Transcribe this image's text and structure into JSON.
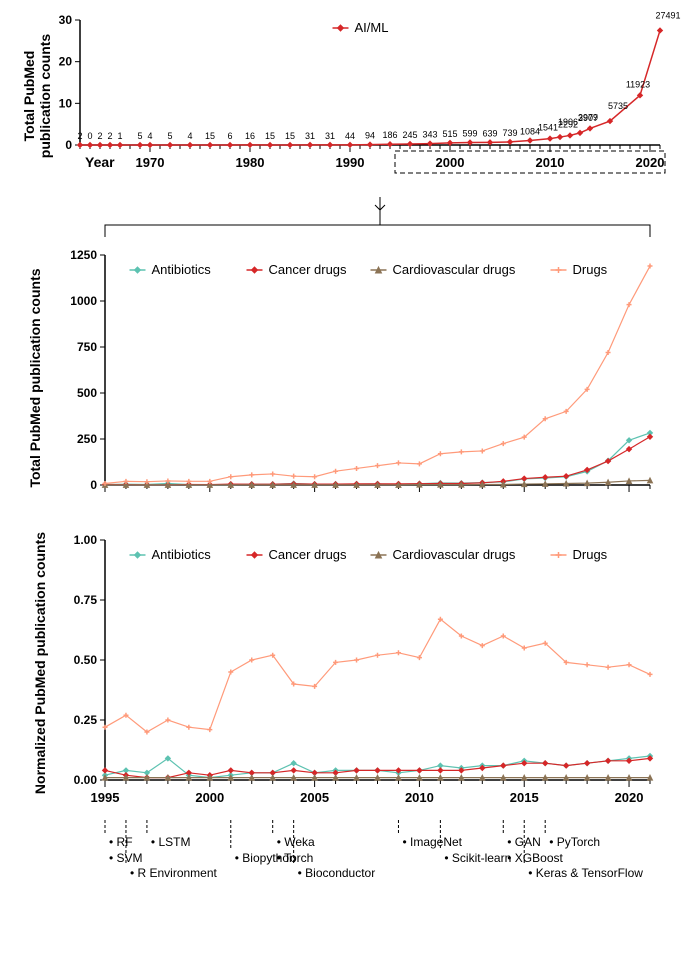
{
  "chart1": {
    "type": "line",
    "title": "",
    "ylabel": "Total PubMed\npublication counts",
    "xlabel": "Year",
    "series_label": "AI/ML",
    "series_color": "#d62728",
    "marker": "diamond",
    "marker_size": 4,
    "line_width": 1.5,
    "background_color": "#ffffff",
    "ylim": [
      0,
      30
    ],
    "yticks": [
      0,
      10,
      20,
      30
    ],
    "year_start": 1963,
    "year_end": 2021,
    "year_ticks": [
      1970,
      1980,
      1990,
      2000,
      2010,
      2020
    ],
    "data_labels": [
      2,
      0,
      2,
      2,
      1,
      5,
      4,
      5,
      4,
      15,
      6,
      16,
      15,
      15,
      31,
      31,
      44,
      94,
      186,
      245,
      343,
      515,
      599,
      639,
      739,
      1084,
      1541,
      1906,
      2292,
      2907,
      3979,
      5735,
      11923,
      27491
    ],
    "values_thousands": [
      0.002,
      0,
      0.002,
      0.002,
      0.001,
      0.005,
      0.004,
      0.005,
      0.004,
      0.015,
      0.006,
      0.016,
      0.015,
      0.015,
      0.031,
      0.031,
      0.044,
      0.094,
      0.186,
      0.245,
      0.343,
      0.515,
      0.599,
      0.639,
      0.739,
      1.084,
      1.541,
      1.906,
      2.292,
      2.907,
      3.979,
      5.735,
      11.923,
      27.491
    ],
    "label_years": [
      1963,
      1964,
      1965,
      1966,
      1967,
      1969,
      1970,
      1972,
      1974,
      1976,
      1978,
      1980,
      1982,
      1984,
      1986,
      1988,
      1990,
      1992,
      1994,
      1996,
      1998,
      2000,
      2002,
      2004,
      2006,
      2008,
      2010,
      2011,
      2012,
      2013,
      2014,
      2016,
      2019,
      2021
    ],
    "dashed_box_years": [
      1995,
      2021
    ]
  },
  "chart2": {
    "type": "line",
    "ylabel": "Total  PubMed publication counts",
    "background_color": "#ffffff",
    "ylim": [
      0,
      1250
    ],
    "yticks": [
      0,
      250,
      500,
      750,
      1000,
      1250
    ],
    "year_start": 1995,
    "year_end": 2021,
    "year_ticks": [
      1995,
      2000,
      2005,
      2010,
      2015,
      2020
    ],
    "series": [
      {
        "label": "Antibiotics",
        "color": "#5dc2b1",
        "marker": "diamond",
        "values": [
          2,
          4,
          3,
          8,
          2,
          1,
          2,
          4,
          4,
          8,
          4,
          5,
          5,
          6,
          4,
          7,
          11,
          10,
          13,
          17,
          33,
          38,
          45,
          74,
          132,
          243,
          283
        ]
      },
      {
        "label": "Cancer drugs",
        "color": "#d62728",
        "marker": "diamond",
        "values": [
          3,
          2,
          1,
          1,
          3,
          2,
          5,
          4,
          4,
          6,
          5,
          5,
          6,
          6,
          6,
          7,
          8,
          8,
          12,
          20,
          35,
          42,
          48,
          82,
          130,
          195,
          262
        ]
      },
      {
        "label": "Cardiovascular drugs",
        "color": "#8b7355",
        "marker": "triangle",
        "values": [
          1,
          1,
          1,
          1,
          1,
          1,
          1,
          1,
          1,
          1,
          1,
          1,
          1,
          1,
          1,
          2,
          2,
          2,
          3,
          3,
          5,
          6,
          8,
          10,
          15,
          22,
          25
        ]
      },
      {
        "label": "Drugs",
        "color": "#ff9a7a",
        "marker": "plus",
        "values": [
          8,
          20,
          18,
          22,
          20,
          20,
          45,
          55,
          60,
          48,
          45,
          75,
          90,
          105,
          120,
          115,
          170,
          180,
          185,
          225,
          260,
          360,
          400,
          520,
          720,
          980,
          1190
        ]
      }
    ]
  },
  "chart3": {
    "type": "line",
    "ylabel": "Normalized PubMed publication counts",
    "background_color": "#ffffff",
    "ylim": [
      0.0,
      1.0
    ],
    "yticks": [
      0.0,
      0.25,
      0.5,
      0.75,
      1.0
    ],
    "year_start": 1995,
    "year_end": 2021,
    "year_ticks": [
      1995,
      2000,
      2005,
      2010,
      2015,
      2020
    ],
    "series": [
      {
        "label": "Antibiotics",
        "color": "#5dc2b1",
        "marker": "diamond",
        "values": [
          0.02,
          0.04,
          0.03,
          0.09,
          0.02,
          0.01,
          0.02,
          0.03,
          0.03,
          0.07,
          0.03,
          0.04,
          0.04,
          0.04,
          0.03,
          0.04,
          0.06,
          0.05,
          0.06,
          0.06,
          0.08,
          0.07,
          0.06,
          0.07,
          0.08,
          0.09,
          0.1
        ]
      },
      {
        "label": "Cancer drugs",
        "color": "#d62728",
        "marker": "diamond",
        "values": [
          0.04,
          0.02,
          0.01,
          0.01,
          0.03,
          0.02,
          0.04,
          0.03,
          0.03,
          0.04,
          0.03,
          0.03,
          0.04,
          0.04,
          0.04,
          0.04,
          0.04,
          0.04,
          0.05,
          0.06,
          0.07,
          0.07,
          0.06,
          0.07,
          0.08,
          0.08,
          0.09
        ]
      },
      {
        "label": "Cardiovascular drugs",
        "color": "#8b7355",
        "marker": "triangle",
        "values": [
          0.01,
          0.01,
          0.01,
          0.01,
          0.01,
          0.01,
          0.01,
          0.01,
          0.01,
          0.01,
          0.01,
          0.01,
          0.01,
          0.01,
          0.01,
          0.01,
          0.01,
          0.01,
          0.01,
          0.01,
          0.01,
          0.01,
          0.01,
          0.01,
          0.01,
          0.01,
          0.01
        ]
      },
      {
        "label": "Drugs",
        "color": "#ff9a7a",
        "marker": "plus",
        "values": [
          0.22,
          0.27,
          0.2,
          0.25,
          0.22,
          0.21,
          0.45,
          0.5,
          0.52,
          0.4,
          0.39,
          0.49,
          0.5,
          0.52,
          0.53,
          0.51,
          0.67,
          0.6,
          0.56,
          0.6,
          0.55,
          0.57,
          0.49,
          0.48,
          0.47,
          0.48,
          0.44
        ]
      }
    ]
  },
  "timeline": {
    "items": [
      {
        "year": 1995,
        "labels": [
          "RF",
          "SVM"
        ]
      },
      {
        "year": 1996,
        "labels": [
          "R Environment"
        ]
      },
      {
        "year": 1997,
        "labels": [
          "LSTM"
        ]
      },
      {
        "year": 2001,
        "labels": [
          "Biopython"
        ]
      },
      {
        "year": 2003,
        "labels": [
          "Weka",
          "Torch"
        ]
      },
      {
        "year": 2004,
        "labels": [
          "Bioconductor"
        ]
      },
      {
        "year": 2009,
        "labels": [
          "ImageNet"
        ]
      },
      {
        "year": 2011,
        "labels": [
          "Scikit-learn"
        ]
      },
      {
        "year": 2014,
        "labels": [
          "GAN",
          "XGBoost"
        ]
      },
      {
        "year": 2015,
        "labels": [
          "Keras & TensorFlow"
        ]
      },
      {
        "year": 2016,
        "labels": [
          "PyTorch"
        ]
      }
    ],
    "font_size": 12
  },
  "colors": {
    "axis": "#000000",
    "grid": "#e0e0e0"
  }
}
